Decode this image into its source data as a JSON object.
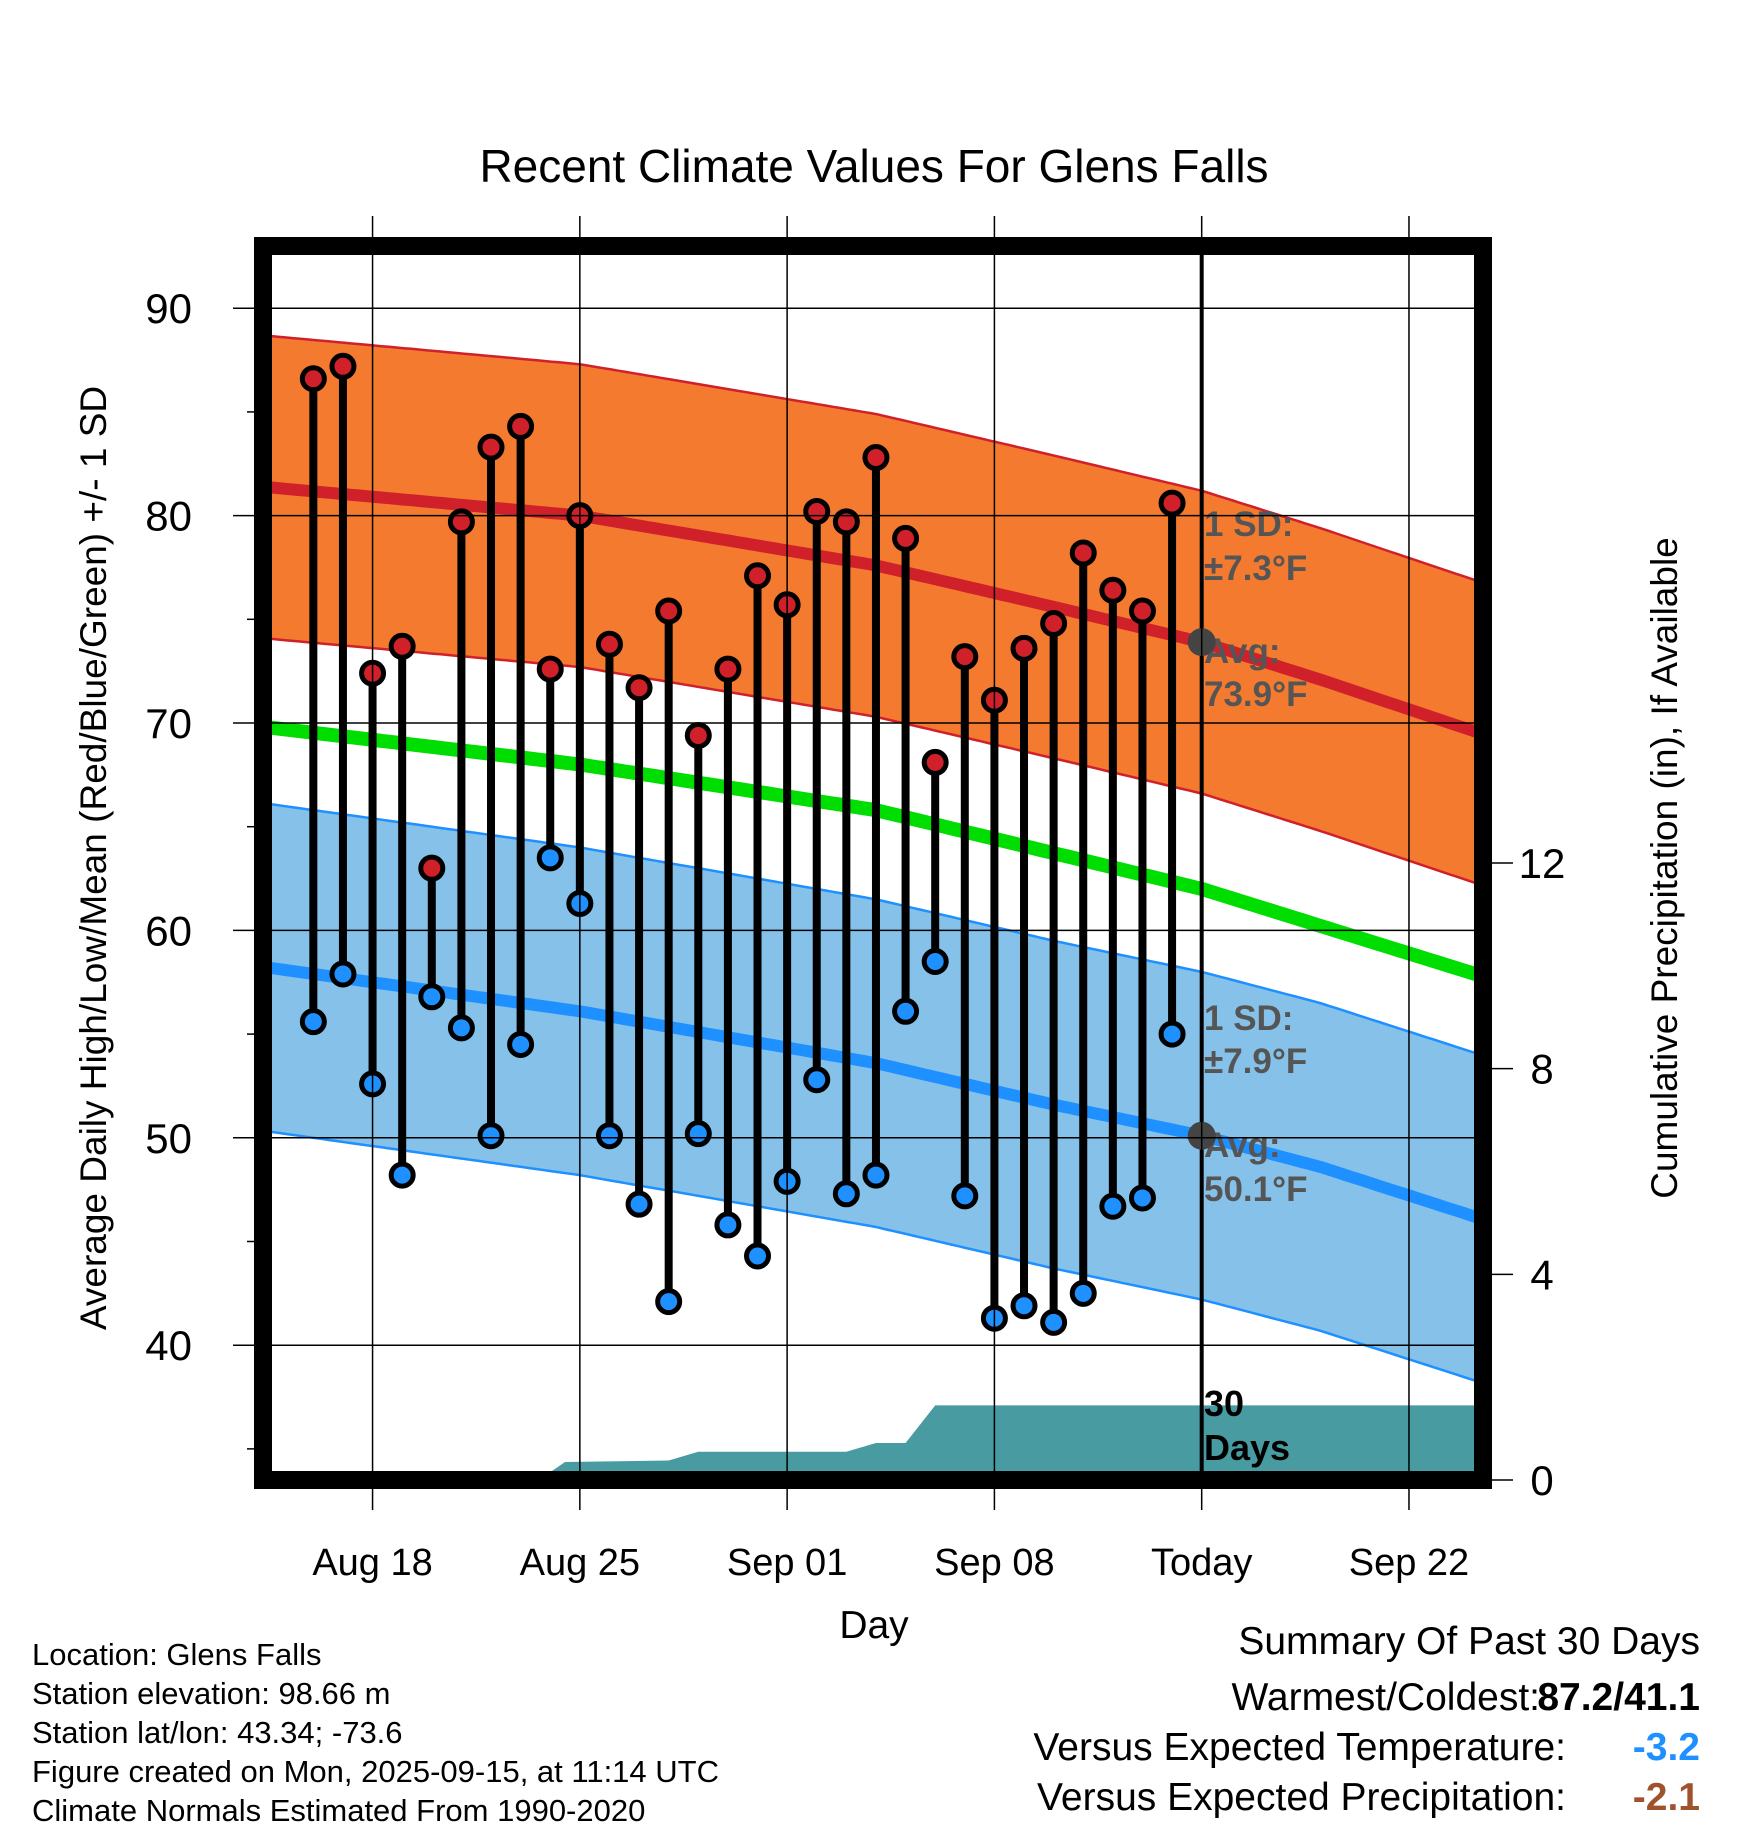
{
  "chart_data": {
    "type": "line",
    "title": "Recent Climate Values For Glens Falls",
    "xlabel": "Day",
    "ylabel": "Average Daily High/Low/Mean (Red/Blue/Green) +/- 1 SD",
    "y2label": "Cumulative Precipitation (in), If Available",
    "x_tick_labels": [
      "Aug 18",
      "Aug 25",
      "Sep 01",
      "Sep 08",
      "Today",
      "Sep 22"
    ],
    "x_tick_days": [
      3,
      10,
      17,
      24,
      31,
      38
    ],
    "xlim": [
      -0.7,
      40.5
    ],
    "ylim": [
      33.5,
      93
    ],
    "y_ticks": [
      40,
      50,
      60,
      70,
      80,
      90
    ],
    "y2lim": [
      0,
      24
    ],
    "y2_ticks": [
      0,
      4,
      8,
      12
    ],
    "today_day": 31,
    "days": [
      1,
      2,
      3,
      4,
      5,
      6,
      7,
      8,
      9,
      10,
      11,
      12,
      13,
      14,
      15,
      16,
      17,
      18,
      19,
      20,
      21,
      22,
      23,
      24,
      25,
      26,
      27,
      28,
      29,
      30
    ],
    "daily_high": [
      86.6,
      87.2,
      72.4,
      73.7,
      63.0,
      79.7,
      83.3,
      84.3,
      72.6,
      80.0,
      73.8,
      71.7,
      75.4,
      69.4,
      72.6,
      77.1,
      75.7,
      80.2,
      79.7,
      82.8,
      78.9,
      68.1,
      73.2,
      71.1,
      73.6,
      74.8,
      78.2,
      76.4,
      75.4,
      80.6
    ],
    "daily_low": [
      55.6,
      57.9,
      52.6,
      48.2,
      56.8,
      55.3,
      50.1,
      54.5,
      63.5,
      61.3,
      50.1,
      46.8,
      42.1,
      50.2,
      45.8,
      44.3,
      47.9,
      52.8,
      47.3,
      48.2,
      56.1,
      58.5,
      47.2,
      41.3,
      41.9,
      41.1,
      42.5,
      46.7,
      47.1,
      55.0
    ],
    "normal_high": [
      {
        "x": 0,
        "y": 81.3
      },
      {
        "x": 10,
        "y": 80.0
      },
      {
        "x": 20,
        "y": 77.6
      },
      {
        "x": 26,
        "y": 75.6
      },
      {
        "x": 31,
        "y": 73.9
      },
      {
        "x": 35,
        "y": 72.1
      },
      {
        "x": 40,
        "y": 69.7
      }
    ],
    "high_sd": 7.3,
    "normal_mean": [
      {
        "x": 0,
        "y": 69.7
      },
      {
        "x": 10,
        "y": 68.0
      },
      {
        "x": 20,
        "y": 65.8
      },
      {
        "x": 31,
        "y": 62.0
      },
      {
        "x": 40,
        "y": 58.0
      }
    ],
    "normal_low": [
      {
        "x": 0,
        "y": 58.1
      },
      {
        "x": 10,
        "y": 56.1
      },
      {
        "x": 20,
        "y": 53.6
      },
      {
        "x": 26,
        "y": 51.6
      },
      {
        "x": 31,
        "y": 50.1
      },
      {
        "x": 35,
        "y": 48.6
      },
      {
        "x": 40,
        "y": 46.3
      }
    ],
    "low_sd": 7.9,
    "cumulative_precip": [
      {
        "x": 4.5,
        "y": 0.0
      },
      {
        "x": 6.0,
        "y": 0.15
      },
      {
        "x": 9.0,
        "y": 0.15
      },
      {
        "x": 9.5,
        "y": 0.35
      },
      {
        "x": 13.0,
        "y": 0.38
      },
      {
        "x": 14.0,
        "y": 0.55
      },
      {
        "x": 19.0,
        "y": 0.55
      },
      {
        "x": 20.0,
        "y": 0.72
      },
      {
        "x": 21.0,
        "y": 0.72
      },
      {
        "x": 22.0,
        "y": 1.45
      },
      {
        "x": 40.5,
        "y": 1.45
      }
    ],
    "annotations": {
      "high_sd": {
        "line1": "1 SD:",
        "line2": "±7.3°F"
      },
      "high_avg": {
        "line1": "Avg:",
        "line2": "73.9°F"
      },
      "low_sd": {
        "line1": "1 SD:",
        "line2": "±7.9°F"
      },
      "low_avg": {
        "line1": "Avg:",
        "line2": "50.1°F"
      },
      "period": {
        "line1": "30",
        "line2": "Days"
      }
    },
    "colors": {
      "high": "#d0202a",
      "high_band": "#f47a30",
      "low": "#1e90ff",
      "low_band": "#85c1e9",
      "mean": "#00dd00",
      "precip": "#479ba1",
      "today_marker": "#444444",
      "annotation": "#555555"
    }
  },
  "station_info": [
    "Location: Glens Falls",
    "Station elevation: 98.66 m",
    "Station lat/lon: 43.34; -73.6",
    "Figure created on Mon, 2025-09-15, at 11:14 UTC",
    "Climate Normals Estimated From 1990-2020"
  ],
  "summary": {
    "title": "Summary Of Past 30 Days",
    "warmest_coldest_label": "Warmest/Coldest:",
    "warmest_coldest_value": "87.2/41.1",
    "temp_label": "Versus Expected Temperature:",
    "temp_value": "-3.2",
    "temp_color": "#1e90ff",
    "precip_label": "Versus Expected Precipitation:",
    "precip_value": "-2.1",
    "precip_color": "#a0522d"
  }
}
